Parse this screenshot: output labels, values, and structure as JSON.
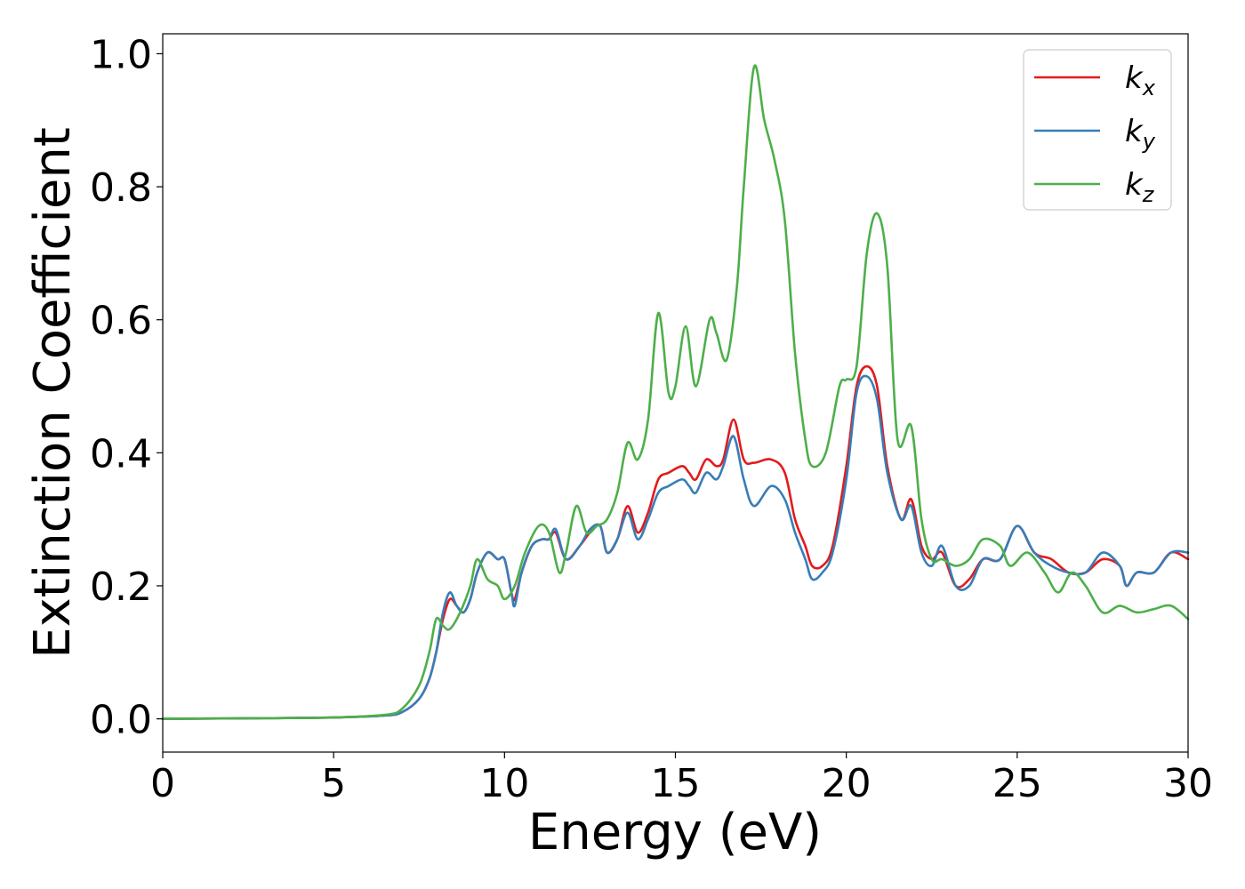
{
  "chart_data": {
    "type": "line",
    "xlabel": "Energy (eV)",
    "ylabel": "Extinction Coefficient",
    "xlim": [
      0,
      30
    ],
    "ylim": [
      -0.05,
      1.03
    ],
    "xticks": [
      0,
      5,
      10,
      15,
      20,
      25,
      30
    ],
    "xtick_labels": [
      "0",
      "5",
      "10",
      "15",
      "20",
      "25",
      "30"
    ],
    "yticks": [
      0.0,
      0.2,
      0.4,
      0.6,
      0.8,
      1.0
    ],
    "ytick_labels": [
      "0.0",
      "0.2",
      "0.4",
      "0.6",
      "0.8",
      "1.0"
    ],
    "grid": false,
    "legend_position": "top-right",
    "series": [
      {
        "name": "k",
        "name_sub": "x",
        "color": "#e41a1c",
        "points": [
          [
            0,
            0.0
          ],
          [
            3,
            0.001
          ],
          [
            5,
            0.002
          ],
          [
            6.5,
            0.005
          ],
          [
            7.0,
            0.01
          ],
          [
            7.5,
            0.03
          ],
          [
            7.8,
            0.06
          ],
          [
            8.0,
            0.1
          ],
          [
            8.2,
            0.15
          ],
          [
            8.4,
            0.18
          ],
          [
            8.6,
            0.17
          ],
          [
            8.8,
            0.16
          ],
          [
            9.0,
            0.18
          ],
          [
            9.2,
            0.22
          ],
          [
            9.5,
            0.25
          ],
          [
            9.8,
            0.24
          ],
          [
            10.0,
            0.24
          ],
          [
            10.2,
            0.19
          ],
          [
            10.3,
            0.18
          ],
          [
            10.5,
            0.22
          ],
          [
            10.8,
            0.26
          ],
          [
            11.1,
            0.27
          ],
          [
            11.3,
            0.27
          ],
          [
            11.5,
            0.28
          ],
          [
            11.8,
            0.24
          ],
          [
            12.2,
            0.26
          ],
          [
            12.5,
            0.28
          ],
          [
            12.8,
            0.29
          ],
          [
            13.0,
            0.25
          ],
          [
            13.3,
            0.27
          ],
          [
            13.6,
            0.32
          ],
          [
            13.9,
            0.28
          ],
          [
            14.2,
            0.31
          ],
          [
            14.5,
            0.36
          ],
          [
            14.8,
            0.37
          ],
          [
            15.2,
            0.38
          ],
          [
            15.4,
            0.37
          ],
          [
            15.6,
            0.36
          ],
          [
            15.9,
            0.39
          ],
          [
            16.2,
            0.38
          ],
          [
            16.4,
            0.39
          ],
          [
            16.7,
            0.45
          ],
          [
            17.0,
            0.39
          ],
          [
            17.3,
            0.385
          ],
          [
            17.8,
            0.39
          ],
          [
            18.2,
            0.37
          ],
          [
            18.5,
            0.3
          ],
          [
            18.8,
            0.26
          ],
          [
            19.0,
            0.23
          ],
          [
            19.3,
            0.23
          ],
          [
            19.6,
            0.26
          ],
          [
            20.0,
            0.38
          ],
          [
            20.3,
            0.5
          ],
          [
            20.6,
            0.53
          ],
          [
            20.9,
            0.5
          ],
          [
            21.2,
            0.38
          ],
          [
            21.6,
            0.3
          ],
          [
            21.9,
            0.33
          ],
          [
            22.2,
            0.26
          ],
          [
            22.5,
            0.24
          ],
          [
            22.8,
            0.25
          ],
          [
            23.2,
            0.2
          ],
          [
            23.6,
            0.21
          ],
          [
            24.0,
            0.24
          ],
          [
            24.5,
            0.24
          ],
          [
            25.0,
            0.29
          ],
          [
            25.5,
            0.25
          ],
          [
            26.0,
            0.24
          ],
          [
            26.5,
            0.22
          ],
          [
            27.0,
            0.22
          ],
          [
            27.5,
            0.24
          ],
          [
            28.0,
            0.23
          ],
          [
            28.2,
            0.2
          ],
          [
            28.5,
            0.22
          ],
          [
            29.0,
            0.22
          ],
          [
            29.5,
            0.25
          ],
          [
            30,
            0.24
          ]
        ]
      },
      {
        "name": "k",
        "name_sub": "y",
        "color": "#377eb8",
        "points": [
          [
            0,
            0.0
          ],
          [
            3,
            0.001
          ],
          [
            5,
            0.002
          ],
          [
            6.5,
            0.005
          ],
          [
            7.0,
            0.01
          ],
          [
            7.5,
            0.03
          ],
          [
            7.8,
            0.06
          ],
          [
            8.0,
            0.1
          ],
          [
            8.2,
            0.16
          ],
          [
            8.4,
            0.19
          ],
          [
            8.6,
            0.17
          ],
          [
            8.8,
            0.16
          ],
          [
            9.0,
            0.18
          ],
          [
            9.2,
            0.22
          ],
          [
            9.5,
            0.25
          ],
          [
            9.8,
            0.24
          ],
          [
            10.0,
            0.24
          ],
          [
            10.2,
            0.19
          ],
          [
            10.3,
            0.17
          ],
          [
            10.5,
            0.22
          ],
          [
            10.8,
            0.26
          ],
          [
            11.1,
            0.27
          ],
          [
            11.3,
            0.27
          ],
          [
            11.5,
            0.285
          ],
          [
            11.8,
            0.24
          ],
          [
            12.2,
            0.26
          ],
          [
            12.5,
            0.285
          ],
          [
            12.8,
            0.29
          ],
          [
            13.0,
            0.25
          ],
          [
            13.3,
            0.27
          ],
          [
            13.6,
            0.31
          ],
          [
            13.9,
            0.27
          ],
          [
            14.2,
            0.3
          ],
          [
            14.5,
            0.34
          ],
          [
            14.8,
            0.35
          ],
          [
            15.2,
            0.36
          ],
          [
            15.4,
            0.35
          ],
          [
            15.6,
            0.34
          ],
          [
            15.9,
            0.37
          ],
          [
            16.2,
            0.36
          ],
          [
            16.4,
            0.38
          ],
          [
            16.7,
            0.425
          ],
          [
            17.0,
            0.36
          ],
          [
            17.3,
            0.32
          ],
          [
            17.8,
            0.35
          ],
          [
            18.2,
            0.33
          ],
          [
            18.5,
            0.28
          ],
          [
            18.8,
            0.24
          ],
          [
            19.0,
            0.21
          ],
          [
            19.3,
            0.22
          ],
          [
            19.6,
            0.25
          ],
          [
            20.0,
            0.36
          ],
          [
            20.3,
            0.49
          ],
          [
            20.6,
            0.515
          ],
          [
            20.9,
            0.48
          ],
          [
            21.2,
            0.37
          ],
          [
            21.6,
            0.3
          ],
          [
            21.9,
            0.32
          ],
          [
            22.2,
            0.25
          ],
          [
            22.5,
            0.23
          ],
          [
            22.8,
            0.26
          ],
          [
            23.2,
            0.2
          ],
          [
            23.6,
            0.2
          ],
          [
            24.0,
            0.24
          ],
          [
            24.5,
            0.24
          ],
          [
            25.0,
            0.29
          ],
          [
            25.5,
            0.25
          ],
          [
            26.0,
            0.23
          ],
          [
            26.5,
            0.22
          ],
          [
            27.0,
            0.22
          ],
          [
            27.5,
            0.25
          ],
          [
            28.0,
            0.23
          ],
          [
            28.2,
            0.2
          ],
          [
            28.5,
            0.22
          ],
          [
            29.0,
            0.22
          ],
          [
            29.5,
            0.25
          ],
          [
            30,
            0.25
          ]
        ]
      },
      {
        "name": "k",
        "name_sub": "z",
        "color": "#4daf4a",
        "points": [
          [
            0,
            0.0
          ],
          [
            3,
            0.001
          ],
          [
            5,
            0.002
          ],
          [
            6.5,
            0.006
          ],
          [
            7.0,
            0.015
          ],
          [
            7.5,
            0.05
          ],
          [
            7.8,
            0.1
          ],
          [
            8.0,
            0.15
          ],
          [
            8.2,
            0.14
          ],
          [
            8.4,
            0.135
          ],
          [
            8.7,
            0.16
          ],
          [
            9.0,
            0.2
          ],
          [
            9.2,
            0.24
          ],
          [
            9.5,
            0.21
          ],
          [
            9.8,
            0.2
          ],
          [
            10.0,
            0.18
          ],
          [
            10.3,
            0.2
          ],
          [
            10.6,
            0.25
          ],
          [
            11.0,
            0.29
          ],
          [
            11.3,
            0.28
          ],
          [
            11.6,
            0.22
          ],
          [
            11.8,
            0.25
          ],
          [
            12.1,
            0.32
          ],
          [
            12.4,
            0.28
          ],
          [
            12.7,
            0.29
          ],
          [
            13.0,
            0.3
          ],
          [
            13.3,
            0.34
          ],
          [
            13.6,
            0.415
          ],
          [
            13.9,
            0.39
          ],
          [
            14.2,
            0.45
          ],
          [
            14.5,
            0.61
          ],
          [
            14.8,
            0.49
          ],
          [
            15.0,
            0.5
          ],
          [
            15.3,
            0.59
          ],
          [
            15.6,
            0.5
          ],
          [
            16.0,
            0.6
          ],
          [
            16.2,
            0.58
          ],
          [
            16.5,
            0.54
          ],
          [
            16.8,
            0.65
          ],
          [
            17.0,
            0.8
          ],
          [
            17.3,
            0.98
          ],
          [
            17.6,
            0.9
          ],
          [
            17.9,
            0.84
          ],
          [
            18.2,
            0.75
          ],
          [
            18.5,
            0.55
          ],
          [
            18.8,
            0.42
          ],
          [
            19.0,
            0.38
          ],
          [
            19.4,
            0.4
          ],
          [
            19.8,
            0.5
          ],
          [
            20.0,
            0.51
          ],
          [
            20.3,
            0.53
          ],
          [
            20.6,
            0.7
          ],
          [
            20.9,
            0.76
          ],
          [
            21.2,
            0.68
          ],
          [
            21.5,
            0.42
          ],
          [
            21.9,
            0.44
          ],
          [
            22.2,
            0.3
          ],
          [
            22.5,
            0.24
          ],
          [
            22.8,
            0.24
          ],
          [
            23.2,
            0.23
          ],
          [
            23.6,
            0.24
          ],
          [
            24.0,
            0.27
          ],
          [
            24.5,
            0.26
          ],
          [
            24.8,
            0.23
          ],
          [
            25.3,
            0.25
          ],
          [
            25.8,
            0.22
          ],
          [
            26.2,
            0.19
          ],
          [
            26.6,
            0.22
          ],
          [
            27.0,
            0.2
          ],
          [
            27.5,
            0.16
          ],
          [
            28.0,
            0.17
          ],
          [
            28.5,
            0.16
          ],
          [
            29.0,
            0.165
          ],
          [
            29.5,
            0.17
          ],
          [
            30,
            0.15
          ]
        ]
      }
    ]
  }
}
